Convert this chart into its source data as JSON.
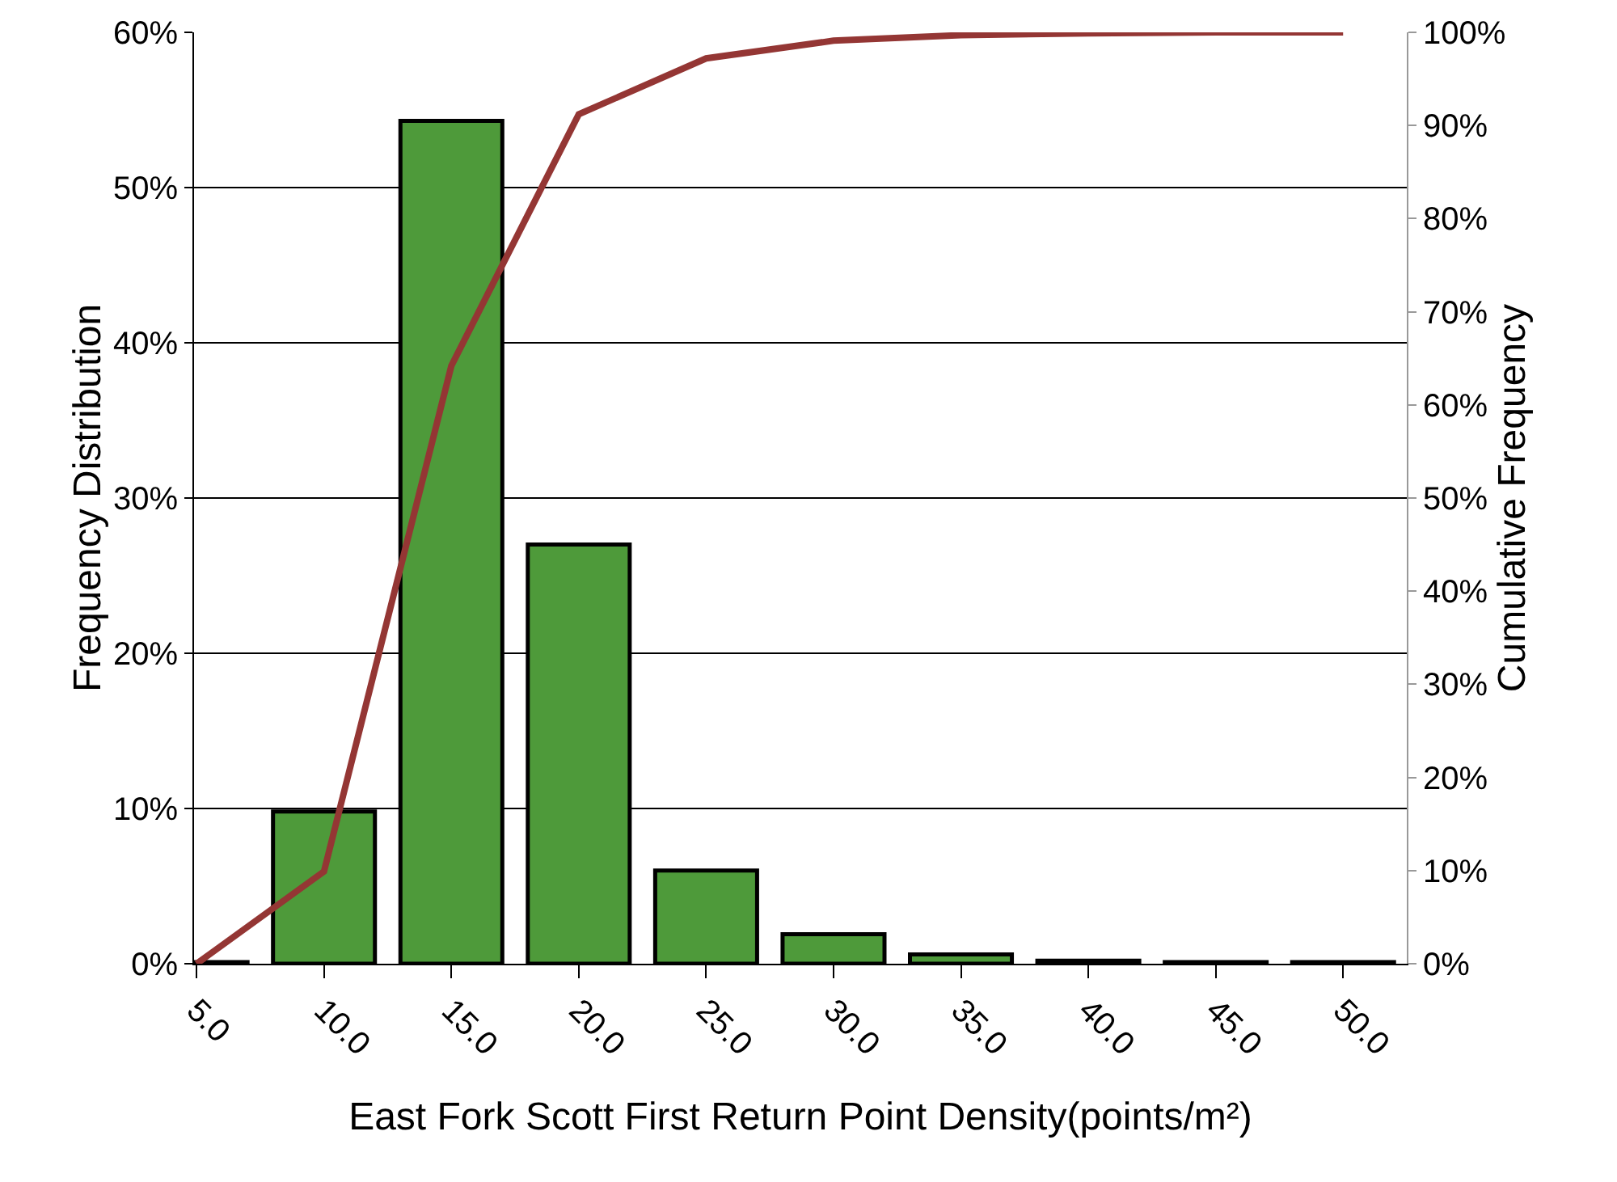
{
  "chart_data": {
    "type": "bar",
    "xlabel": "East Fork Scott First Return Point Density(points/m²)",
    "ylabel": "Frequency Distribution",
    "y2label": "Cumulative Frequency",
    "categories": [
      "5.0",
      "10.0",
      "15.0",
      "20.0",
      "25.0",
      "30.0",
      "35.0",
      "40.0",
      "45.0",
      "50.0"
    ],
    "series": [
      {
        "color": "#4e9a3a",
        "values": [
          0.1,
          9.8,
          54.3,
          27.0,
          6.0,
          1.9,
          0.6,
          0.2,
          0.1,
          0.1
        ]
      },
      {
        "type": "line",
        "axis": "y2",
        "color": "#943634",
        "values": [
          0,
          9.9,
          64.2,
          91.2,
          97.2,
          99.1,
          99.7,
          99.9,
          100,
          100
        ]
      }
    ],
    "ylim": [
      0,
      60
    ],
    "yticks": [
      {
        "value": 0,
        "label": "0%"
      },
      {
        "value": 10,
        "label": "10%"
      },
      {
        "value": 20,
        "label": "20%"
      },
      {
        "value": 30,
        "label": "30%"
      },
      {
        "value": 40,
        "label": "40%"
      },
      {
        "value": 50,
        "label": "50%"
      },
      {
        "value": 60,
        "label": "60%"
      }
    ],
    "y2lim": [
      0,
      100
    ],
    "y2ticks": [
      {
        "value": 0,
        "label": "0%"
      },
      {
        "value": 10,
        "label": "10%"
      },
      {
        "value": 20,
        "label": "20%"
      },
      {
        "value": 30,
        "label": "30%"
      },
      {
        "value": 40,
        "label": "40%"
      },
      {
        "value": 50,
        "label": "50%"
      },
      {
        "value": 60,
        "label": "60%"
      },
      {
        "value": 70,
        "label": "70%"
      },
      {
        "value": 80,
        "label": "80%"
      },
      {
        "value": 90,
        "label": "90%"
      },
      {
        "value": 100,
        "label": "100%"
      }
    ],
    "grid": "y",
    "legend": false,
    "marker": "none",
    "line_style": "solid"
  }
}
